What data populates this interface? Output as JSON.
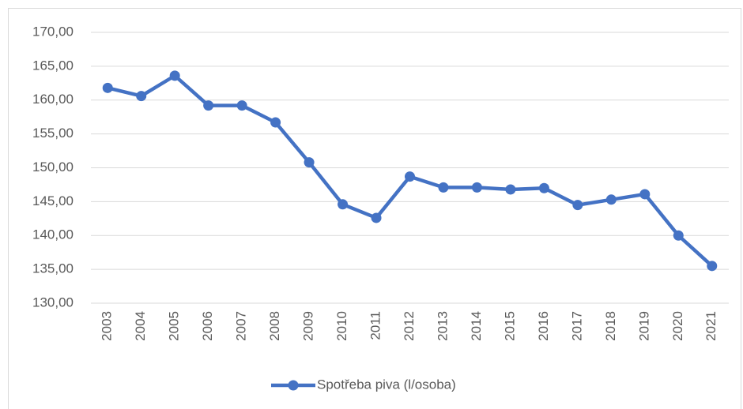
{
  "chart_data": {
    "type": "line",
    "categories": [
      "2003",
      "2004",
      "2005",
      "2006",
      "2007",
      "2008",
      "2009",
      "2010",
      "2011",
      "2012",
      "2013",
      "2014",
      "2015",
      "2016",
      "2017",
      "2018",
      "2019",
      "2020",
      "2021"
    ],
    "series": [
      {
        "name": "Spotřeba piva (l/osoba)",
        "color": "#4472c4",
        "values": [
          161.8,
          160.6,
          163.6,
          159.2,
          159.2,
          156.7,
          150.8,
          144.6,
          142.6,
          148.7,
          147.1,
          147.1,
          146.8,
          147.0,
          144.5,
          145.3,
          146.1,
          140.0,
          135.5
        ]
      }
    ],
    "ylim": [
      130,
      170
    ],
    "yticks": [
      {
        "value": 130,
        "label": "130,00"
      },
      {
        "value": 135,
        "label": "135,00"
      },
      {
        "value": 140,
        "label": "140,00"
      },
      {
        "value": 145,
        "label": "145,00"
      },
      {
        "value": 150,
        "label": "150,00"
      },
      {
        "value": 155,
        "label": "155,00"
      },
      {
        "value": 160,
        "label": "160,00"
      },
      {
        "value": 165,
        "label": "165,00"
      },
      {
        "value": 170,
        "label": "170,00"
      }
    ],
    "grid": true,
    "legend": "bottom"
  }
}
